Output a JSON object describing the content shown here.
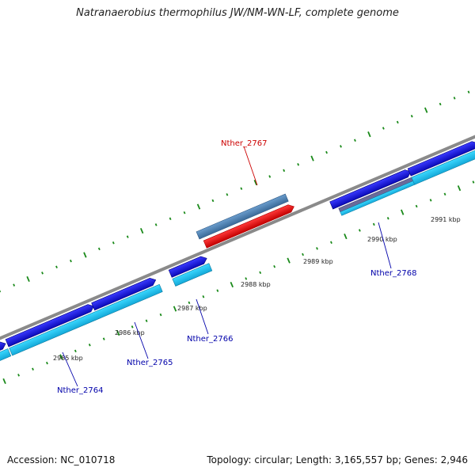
{
  "header": {
    "title": "Natranaerobius thermophilus JW/NM-WN-LF, complete genome"
  },
  "footer": {
    "accession": "Accession: NC_010718",
    "summary": "Topology: circular; Length: 3,165,557 bp; Genes: 2,946"
  },
  "ruler": {
    "tick_labels": [
      "2985 kbp",
      "2986 kbp",
      "2987 kbp",
      "2988 kbp",
      "2989 kbp",
      "2990 kbp",
      "2991 kbp"
    ]
  },
  "genes": [
    {
      "id": "Nther_2764",
      "label": "Nther_2764",
      "strand": "+",
      "selected": false
    },
    {
      "id": "Nther_2765",
      "label": "Nther_2765",
      "strand": "+",
      "selected": false
    },
    {
      "id": "Nther_2766",
      "label": "Nther_2766",
      "strand": "+",
      "selected": false
    },
    {
      "id": "Nther_2767",
      "label": "Nther_2767",
      "strand": "-",
      "selected": true
    },
    {
      "id": "Nther_2768",
      "label": "Nther_2768",
      "strand": "+",
      "selected": false
    }
  ],
  "colors": {
    "backbone": "#8a8a8a",
    "gene_forward": "#1a1aee",
    "cds_forward": "#1ec8f0",
    "gene_selected": "#ee1111",
    "cds_reverse": "#4a7fb0",
    "tick": "#1a8a1a",
    "label_default": "#0000aa",
    "label_selected": "#cc0000"
  }
}
